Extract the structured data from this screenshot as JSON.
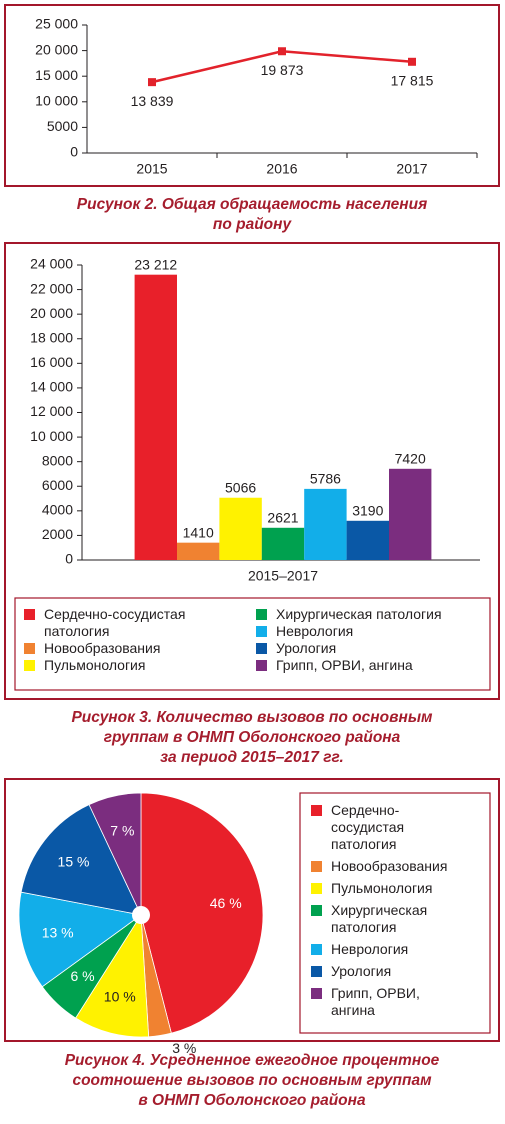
{
  "chart_data": [
    {
      "type": "line",
      "categories": [
        "2015",
        "2016",
        "2017"
      ],
      "series": [
        {
          "color": "#e2222b",
          "values": [
            13839,
            19873,
            17815
          ],
          "value_labels": [
            "13 839",
            "19 873",
            "17 815"
          ]
        }
      ],
      "ylim": [
        0,
        25000
      ],
      "yticks": [
        0,
        5000,
        {
          "value": 10000,
          "label": "10 000"
        },
        {
          "value": 15000,
          "label": "15 000"
        },
        {
          "value": 20000,
          "label": "20 000"
        },
        {
          "value": 25000,
          "label": "25 000"
        }
      ],
      "caption": [
        "Рисунок 2.  Общая обращаемость населения",
        "по району"
      ]
    },
    {
      "type": "bar",
      "categories": [
        "2015–2017"
      ],
      "series": [
        {
          "name": "Сердечно-сосудистая патология",
          "color": "#e8202a",
          "values": [
            23212
          ],
          "value_labels": [
            "23 212"
          ]
        },
        {
          "name": "Новообразования",
          "color": "#f08231",
          "values": [
            1410
          ]
        },
        {
          "name": "Пульмонология",
          "color": "#fff200",
          "values": [
            5066
          ]
        },
        {
          "name": "Хирургическая патология",
          "color": "#00a14f",
          "values": [
            2621
          ]
        },
        {
          "name": "Неврология",
          "color": "#12aee9",
          "values": [
            5786
          ]
        },
        {
          "name": "Урология",
          "color": "#0a58a6",
          "values": [
            3190
          ]
        },
        {
          "name": "Грипп, ОРВИ, ангина",
          "color": "#7b2d7f",
          "values": [
            7420
          ]
        }
      ],
      "ylim": [
        0,
        24000
      ],
      "yticks": [
        0,
        2000,
        4000,
        6000,
        8000,
        {
          "value": 10000,
          "label": "10 000"
        },
        {
          "value": 12000,
          "label": "12 000"
        },
        {
          "value": 14000,
          "label": "14 000"
        },
        {
          "value": 16000,
          "label": "16 000"
        },
        {
          "value": 18000,
          "label": "18 000"
        },
        {
          "value": 20000,
          "label": "20 000"
        },
        {
          "value": 22000,
          "label": "22 000"
        },
        {
          "value": 24000,
          "label": "24 000"
        }
      ],
      "caption": [
        "Рисунок 3.  Количество вызовов по основным",
        "группам в ОНМП Оболонского района",
        "за период 2015–2017 гг."
      ]
    },
    {
      "type": "pie",
      "categories": [
        "Сердечно-сосудистая патология",
        "Новообразования",
        "Пульмонология",
        "Хирургическая патология",
        "Неврология",
        "Урология",
        "Грипп, ОРВИ, ангина"
      ],
      "values": [
        46,
        3,
        10,
        6,
        13,
        15,
        7
      ],
      "value_labels": [
        "46 %",
        "3 %",
        "10 %",
        "6 %",
        "13 %",
        "15 %",
        "7 %"
      ],
      "colors": [
        "#e8202a",
        "#f08231",
        "#fff200",
        "#00a14f",
        "#12aee9",
        "#0a58a6",
        "#7b2d7f"
      ],
      "caption": [
        "Рисунок 4.  Усредненное ежегодное процентное",
        "соотношение вызовов по основным группам",
        "в ОНМП Оболонского района"
      ]
    }
  ]
}
